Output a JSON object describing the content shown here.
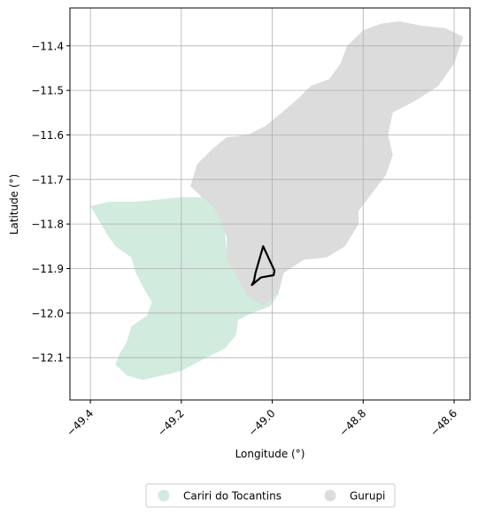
{
  "chart_data": {
    "type": "map",
    "xlabel": "Longitude (°)",
    "ylabel": "Latitude (°)",
    "xlim": [
      -49.445,
      -48.565
    ],
    "ylim": [
      -12.195,
      -11.315
    ],
    "xticks": [
      -49.4,
      -49.2,
      -49.0,
      -48.8,
      -48.6
    ],
    "xtick_labels": [
      "−49.4",
      "−49.2",
      "−49.0",
      "−48.8",
      "−48.6"
    ],
    "yticks": [
      -11.4,
      -11.5,
      -11.6,
      -11.7,
      -11.8,
      -11.9,
      -12.0,
      -12.1
    ],
    "ytick_labels": [
      "−11.4",
      "−11.5",
      "−11.6",
      "−11.7",
      "−11.8",
      "−11.9",
      "−12.0",
      "−12.1"
    ],
    "grid": true,
    "legend_position": "bottom-center",
    "regions": [
      {
        "name": "Cariri do Tocantins",
        "color": "#d1ebde",
        "polygon": [
          [
            -49.4,
            -11.76
          ],
          [
            -49.36,
            -11.75
          ],
          [
            -49.3,
            -11.75
          ],
          [
            -49.25,
            -11.745
          ],
          [
            -49.2,
            -11.74
          ],
          [
            -49.15,
            -11.74
          ],
          [
            -49.125,
            -11.76
          ],
          [
            -49.105,
            -11.81
          ],
          [
            -49.1,
            -11.86
          ],
          [
            -49.085,
            -11.89
          ],
          [
            -49.06,
            -11.91
          ],
          [
            -49.035,
            -11.935
          ],
          [
            -49.02,
            -11.92
          ],
          [
            -49.0,
            -11.93
          ],
          [
            -48.985,
            -11.955
          ],
          [
            -49.005,
            -11.985
          ],
          [
            -49.045,
            -12.0
          ],
          [
            -49.075,
            -12.015
          ],
          [
            -49.08,
            -12.05
          ],
          [
            -49.105,
            -12.08
          ],
          [
            -49.155,
            -12.105
          ],
          [
            -49.2,
            -12.13
          ],
          [
            -49.24,
            -12.14
          ],
          [
            -49.285,
            -12.15
          ],
          [
            -49.32,
            -12.14
          ],
          [
            -49.345,
            -12.115
          ],
          [
            -49.335,
            -12.09
          ],
          [
            -49.32,
            -12.065
          ],
          [
            -49.31,
            -12.03
          ],
          [
            -49.275,
            -12.005
          ],
          [
            -49.265,
            -11.975
          ],
          [
            -49.285,
            -11.94
          ],
          [
            -49.3,
            -11.91
          ],
          [
            -49.31,
            -11.875
          ],
          [
            -49.345,
            -11.85
          ],
          [
            -49.365,
            -11.82
          ],
          [
            -49.385,
            -11.785
          ]
        ]
      },
      {
        "name": "Gurupi",
        "color": "#dcdcdc",
        "polygon": [
          [
            -49.18,
            -11.715
          ],
          [
            -49.165,
            -11.665
          ],
          [
            -49.13,
            -11.63
          ],
          [
            -49.1,
            -11.605
          ],
          [
            -49.055,
            -11.6
          ],
          [
            -49.015,
            -11.58
          ],
          [
            -48.985,
            -11.555
          ],
          [
            -48.945,
            -11.52
          ],
          [
            -48.915,
            -11.49
          ],
          [
            -48.875,
            -11.475
          ],
          [
            -48.85,
            -11.44
          ],
          [
            -48.835,
            -11.4
          ],
          [
            -48.8,
            -11.365
          ],
          [
            -48.76,
            -11.35
          ],
          [
            -48.72,
            -11.345
          ],
          [
            -48.67,
            -11.355
          ],
          [
            -48.62,
            -11.36
          ],
          [
            -48.58,
            -11.38
          ],
          [
            -48.6,
            -11.44
          ],
          [
            -48.635,
            -11.49
          ],
          [
            -48.68,
            -11.52
          ],
          [
            -48.735,
            -11.55
          ],
          [
            -48.745,
            -11.6
          ],
          [
            -48.735,
            -11.645
          ],
          [
            -48.75,
            -11.69
          ],
          [
            -48.78,
            -11.73
          ],
          [
            -48.81,
            -11.77
          ],
          [
            -48.81,
            -11.8
          ],
          [
            -48.84,
            -11.85
          ],
          [
            -48.88,
            -11.875
          ],
          [
            -48.93,
            -11.88
          ],
          [
            -48.975,
            -11.91
          ],
          [
            -48.985,
            -11.95
          ],
          [
            -49.02,
            -11.985
          ],
          [
            -49.055,
            -11.96
          ],
          [
            -49.08,
            -11.915
          ],
          [
            -49.1,
            -11.88
          ],
          [
            -49.1,
            -11.83
          ],
          [
            -49.115,
            -11.79
          ],
          [
            -49.13,
            -11.76
          ],
          [
            -49.155,
            -11.74
          ]
        ]
      }
    ],
    "outline": {
      "name": "",
      "color": "#000000",
      "polygon": [
        [
          -49.02,
          -11.85
        ],
        [
          -48.995,
          -11.905
        ],
        [
          -48.997,
          -11.915
        ],
        [
          -49.025,
          -11.92
        ],
        [
          -49.045,
          -11.937
        ],
        [
          -49.04,
          -11.927
        ],
        [
          -49.037,
          -11.91
        ],
        [
          -49.02,
          -11.85
        ]
      ]
    }
  },
  "legend": {
    "items": [
      {
        "label": "Cariri do Tocantins",
        "color": "#d1ebde"
      },
      {
        "label": "Gurupi",
        "color": "#dcdcdc"
      }
    ]
  }
}
